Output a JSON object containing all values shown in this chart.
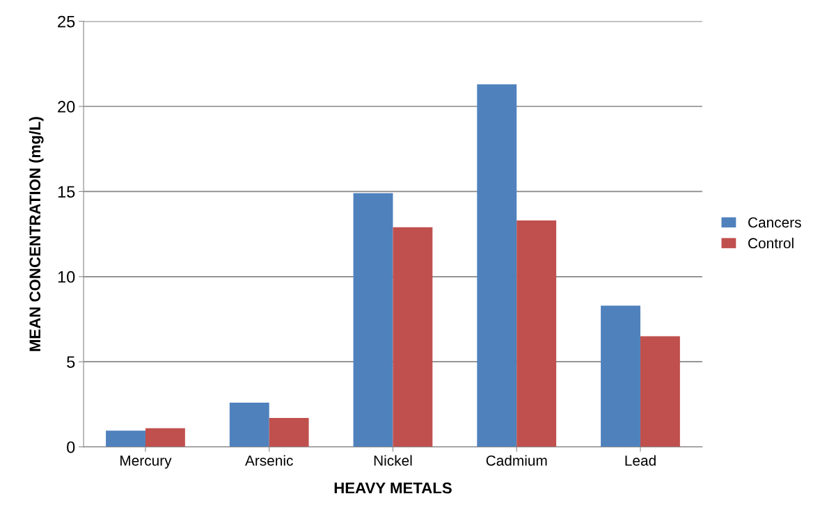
{
  "chart_data": {
    "type": "bar",
    "xlabel": "HEAVY METALS",
    "ylabel": "MEAN CONCENTRATION (mg/L)",
    "categories": [
      "Mercury",
      "Arsenic",
      "Nickel",
      "Cadmium",
      "Lead"
    ],
    "series": [
      {
        "name": "Cancers",
        "color": "#4f81bd",
        "values": [
          0.95,
          2.6,
          14.9,
          21.3,
          8.3
        ]
      },
      {
        "name": "Control",
        "color": "#c0504d",
        "values": [
          1.1,
          1.7,
          12.9,
          13.3,
          6.5
        ]
      }
    ],
    "ylim": [
      0,
      25
    ],
    "yticks": [
      0,
      5,
      10,
      15,
      20,
      25
    ],
    "grid": "y",
    "legend": "right"
  }
}
